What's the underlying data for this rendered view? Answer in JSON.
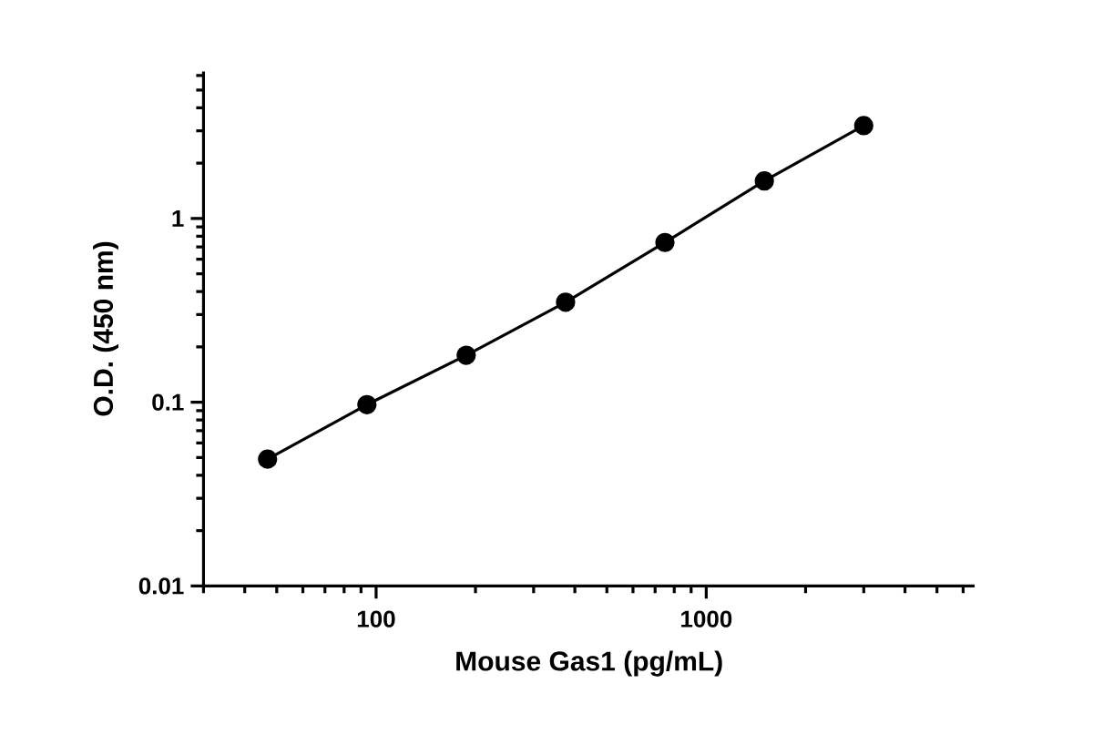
{
  "chart_data": {
    "type": "line",
    "xlabel": "Mouse Gas1 (pg/mL)",
    "ylabel": "O.D. (450 nm)",
    "x": [
      46.9,
      93.8,
      187.5,
      375,
      750,
      1500,
      3000
    ],
    "series": [
      {
        "color": "#000000",
        "values": [
          0.049,
          0.097,
          0.18,
          0.35,
          0.74,
          1.6,
          3.2
        ]
      }
    ],
    "log": "xy",
    "xlim": [
      30,
      6500
    ],
    "ylim": [
      0.01,
      6.3
    ],
    "xticks": [
      100,
      1000
    ],
    "yticks": [
      0.01,
      0.1,
      1
    ],
    "marker": "circle",
    "line_style": "solid"
  }
}
